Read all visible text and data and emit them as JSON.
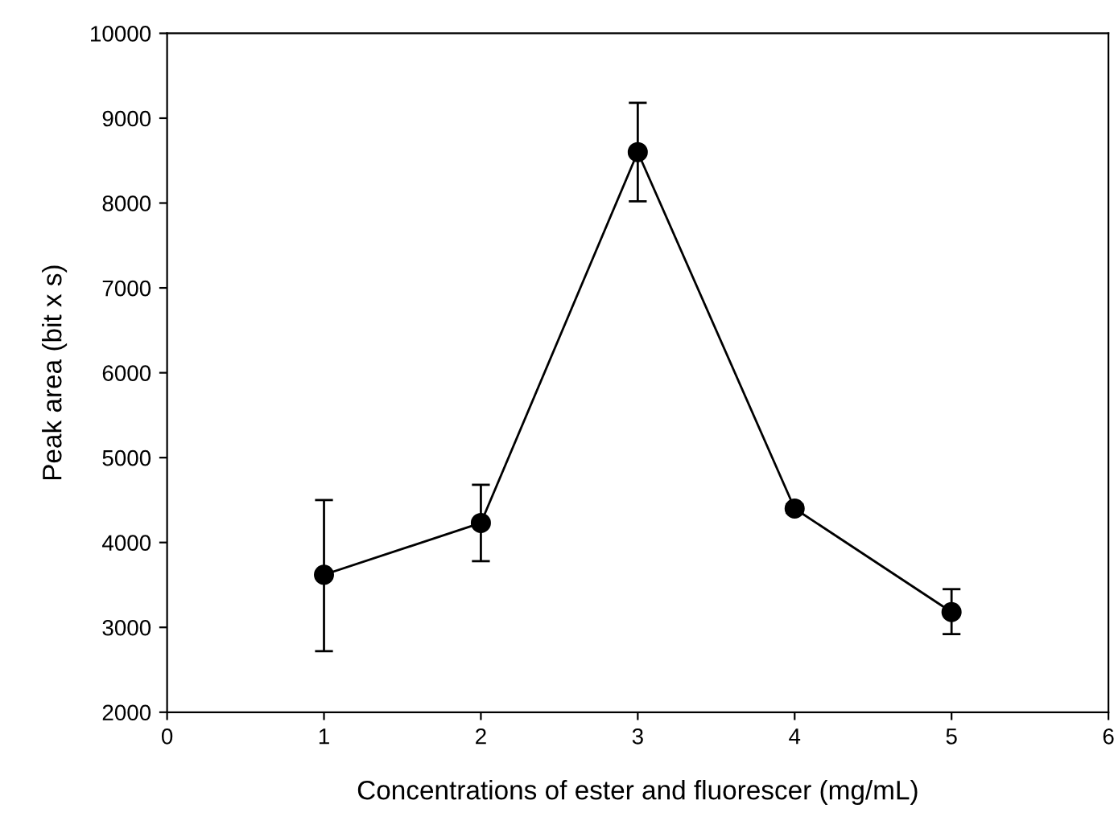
{
  "chart_data": {
    "type": "line",
    "xlabel": "Concentrations of ester and fluorescer (mg/mL)",
    "ylabel": "Peak area (bit x s)",
    "x": [
      1,
      2,
      3,
      4,
      5
    ],
    "series": [
      {
        "color": "#000000",
        "values": [
          3620,
          4230,
          8600,
          4400,
          3180
        ],
        "errors": [
          [
            2720,
            4500
          ],
          [
            3780,
            4680
          ],
          [
            8020,
            9180
          ],
          [
            4350,
            4450
          ],
          [
            2920,
            3450
          ]
        ]
      }
    ],
    "xlim": [
      0,
      6
    ],
    "xticks": [
      0,
      1,
      2,
      3,
      4,
      5,
      6
    ],
    "ylim": [
      2000,
      10000
    ],
    "yticks": [
      2000,
      3000,
      4000,
      5000,
      6000,
      7000,
      8000,
      9000,
      10000
    ],
    "grid": false,
    "legend": false,
    "marker": "circle",
    "line_style": "solid"
  }
}
